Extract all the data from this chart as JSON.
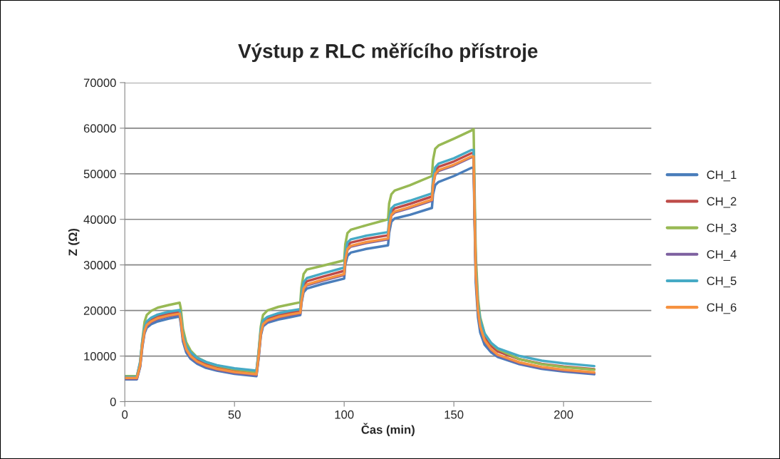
{
  "chart_data": {
    "type": "line",
    "title": "Výstup z RLC měřícího přístroje",
    "xlabel": "Čas (min)",
    "ylabel": "Z (Ω)",
    "x": [
      0,
      5.5,
      7,
      8,
      9,
      10,
      12,
      15,
      20,
      25,
      25.5,
      26.5,
      28,
      30,
      33,
      37,
      42,
      50,
      60,
      61,
      62,
      63,
      65,
      70,
      75,
      80,
      80.5,
      81.5,
      83,
      90,
      100,
      100.5,
      101.5,
      103,
      110,
      120,
      120.5,
      121.5,
      123,
      130,
      140,
      140.5,
      141.5,
      143,
      150,
      158,
      159,
      159.5,
      160,
      161,
      162,
      164,
      167,
      170,
      180,
      190,
      200,
      214
    ],
    "xlim": [
      0,
      240
    ],
    "xticks": [
      0,
      50,
      100,
      150,
      200
    ],
    "ylim": [
      0,
      70000
    ],
    "yticks": [
      0,
      10000,
      20000,
      30000,
      40000,
      50000,
      60000,
      70000
    ],
    "grid": "y",
    "legend": "right",
    "marker": "none",
    "line_style": "solid",
    "series": [
      {
        "name": "CH_1",
        "color": "#4a7ebb",
        "values": [
          4900,
          4900,
          7600,
          12000,
          15000,
          16200,
          17000,
          17600,
          18200,
          18700,
          17200,
          13200,
          10800,
          9400,
          8300,
          7400,
          6800,
          6100,
          5600,
          9500,
          14500,
          16500,
          17300,
          18000,
          18500,
          19000,
          21500,
          24000,
          24800,
          25800,
          27000,
          30000,
          32000,
          32700,
          33500,
          34300,
          37000,
          39500,
          40200,
          41000,
          42500,
          45500,
          47500,
          48200,
          49500,
          51300,
          51300,
          38000,
          26000,
          18500,
          15200,
          12500,
          10800,
          9800,
          8200,
          7200,
          6600,
          6000
        ]
      },
      {
        "name": "CH_2",
        "color": "#be4b48",
        "values": [
          5300,
          5300,
          8400,
          12900,
          15900,
          17200,
          18000,
          18700,
          19300,
          19700,
          18400,
          14400,
          11900,
          10400,
          9200,
          8300,
          7600,
          6900,
          6400,
          10400,
          15400,
          17400,
          18200,
          19000,
          19500,
          19900,
          22700,
          25500,
          26400,
          27400,
          28700,
          31700,
          34200,
          34900,
          35700,
          36500,
          39200,
          41700,
          42400,
          43400,
          45000,
          48200,
          50700,
          51500,
          52700,
          54500,
          54500,
          40700,
          28700,
          20700,
          17200,
          14200,
          12200,
          11000,
          9300,
          8300,
          7700,
          7100
        ]
      },
      {
        "name": "CH_3",
        "color": "#98b954",
        "values": [
          5600,
          5600,
          8500,
          13500,
          17500,
          19000,
          19900,
          20600,
          21200,
          21700,
          20500,
          16000,
          13000,
          11200,
          9700,
          8700,
          7900,
          7100,
          6500,
          11000,
          16500,
          19000,
          20000,
          20800,
          21300,
          21800,
          25000,
          28000,
          29000,
          29800,
          31000,
          34500,
          37000,
          37700,
          38700,
          40000,
          43500,
          45500,
          46300,
          47500,
          49500,
          53000,
          55500,
          56200,
          57700,
          59500,
          59800,
          45000,
          32000,
          22500,
          18500,
          15000,
          12800,
          11500,
          9300,
          8200,
          7600,
          7000
        ]
      },
      {
        "name": "CH_4",
        "color": "#7d60a0",
        "values": [
          5000,
          5000,
          7800,
          12300,
          15300,
          16600,
          17400,
          18100,
          18700,
          19100,
          17800,
          13800,
          11300,
          9800,
          8600,
          7700,
          7000,
          6300,
          5800,
          9800,
          14800,
          16800,
          17600,
          18400,
          18900,
          19300,
          21800,
          24600,
          25500,
          26500,
          27800,
          30800,
          33300,
          34000,
          34800,
          35600,
          38300,
          40800,
          41500,
          42500,
          44100,
          47300,
          49800,
          50600,
          51800,
          53600,
          53600,
          39800,
          27800,
          19800,
          16300,
          13300,
          11300,
          10100,
          8400,
          7400,
          6800,
          6200
        ]
      },
      {
        "name": "CH_5",
        "color": "#46aac5",
        "values": [
          5400,
          5400,
          8800,
          13300,
          16300,
          17600,
          18400,
          19100,
          19700,
          20100,
          18800,
          14800,
          12300,
          10800,
          9600,
          8700,
          8000,
          7300,
          6800,
          10800,
          15800,
          17800,
          18600,
          19400,
          19900,
          20300,
          23400,
          26200,
          27100,
          28100,
          29400,
          32400,
          34900,
          35600,
          36400,
          37200,
          39900,
          42400,
          43100,
          44100,
          45700,
          48900,
          51400,
          52200,
          53400,
          55200,
          55200,
          41400,
          29400,
          21400,
          17900,
          14900,
          12900,
          11700,
          10000,
          9000,
          8400,
          7800
        ]
      },
      {
        "name": "CH_6",
        "color": "#f69240",
        "values": [
          5200,
          5200,
          8000,
          12500,
          15500,
          16800,
          17600,
          18300,
          18900,
          19300,
          18000,
          14000,
          11500,
          10000,
          8800,
          7900,
          7200,
          6500,
          6000,
          10000,
          15000,
          17000,
          17800,
          18600,
          19100,
          19500,
          22000,
          24800,
          25700,
          26700,
          28000,
          31000,
          33500,
          34200,
          35000,
          35800,
          38500,
          41000,
          41700,
          42700,
          44300,
          47500,
          50000,
          50800,
          52000,
          53800,
          53800,
          40000,
          28000,
          20000,
          16500,
          13500,
          11500,
          10300,
          8600,
          7600,
          7000,
          6400
        ]
      }
    ]
  }
}
